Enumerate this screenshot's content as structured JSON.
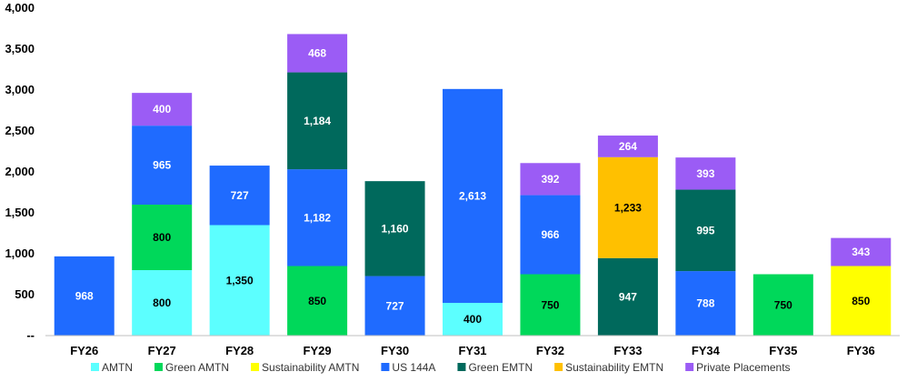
{
  "chart_data": {
    "type": "bar",
    "stacked": true,
    "title": "",
    "xlabel": "",
    "ylabel": "",
    "ylim": [
      0,
      4000
    ],
    "yticks": [
      0,
      500,
      1000,
      1500,
      2000,
      2500,
      3000,
      3500,
      4000
    ],
    "ytick_labels": [
      "--",
      "500",
      "1,000",
      "1,500",
      "2,000",
      "2,500",
      "3,000",
      "3,500",
      "4,000"
    ],
    "grid": false,
    "legend_position": "bottom",
    "categories": [
      "FY26",
      "FY27",
      "FY28",
      "FY29",
      "FY30",
      "FY31",
      "FY32",
      "FY33",
      "FY34",
      "FY35",
      "FY36"
    ],
    "series": [
      {
        "name": "AMTN",
        "color": "#5CFFFF",
        "label_color": "#000000",
        "values": [
          0,
          800,
          1350,
          0,
          0,
          400,
          0,
          0,
          0,
          0,
          0
        ],
        "labels": [
          "",
          "800",
          "1,350",
          "",
          "",
          "400",
          "",
          "",
          "",
          "",
          ""
        ]
      },
      {
        "name": "Green AMTN",
        "color": "#00D85A",
        "label_color": "#000000",
        "values": [
          0,
          800,
          0,
          850,
          0,
          0,
          750,
          0,
          0,
          750,
          0
        ],
        "labels": [
          "",
          "800",
          "",
          "850",
          "",
          "",
          "750",
          "",
          "",
          "750",
          ""
        ]
      },
      {
        "name": "Sustainability AMTN",
        "color": "#FFFF00",
        "label_color": "#000000",
        "values": [
          0,
          0,
          0,
          0,
          0,
          0,
          0,
          0,
          0,
          0,
          850
        ],
        "labels": [
          "",
          "",
          "",
          "",
          "",
          "",
          "",
          "",
          "",
          "",
          "850"
        ]
      },
      {
        "name": "Green EMTN (FY33)",
        "legend": false,
        "color": "#00695C",
        "label_color": "#FFFFFF",
        "values": [
          0,
          0,
          0,
          0,
          0,
          0,
          0,
          947,
          0,
          0,
          0
        ],
        "labels": [
          "",
          "",
          "",
          "",
          "",
          "",
          "",
          "947",
          "",
          "",
          ""
        ]
      },
      {
        "name": "US 144A",
        "color": "#1F6BFF",
        "label_color": "#FFFFFF",
        "values": [
          968,
          965,
          727,
          1182,
          727,
          2613,
          966,
          0,
          788,
          0,
          0
        ],
        "labels": [
          "968",
          "965",
          "727",
          "1,182",
          "727",
          "2,613",
          "966",
          "",
          "788",
          "",
          ""
        ]
      },
      {
        "name": "Green EMTN",
        "color": "#00695C",
        "label_color": "#FFFFFF",
        "values": [
          0,
          0,
          0,
          1184,
          1160,
          0,
          0,
          0,
          995,
          0,
          0
        ],
        "labels": [
          "",
          "",
          "",
          "1,184",
          "1,160",
          "",
          "",
          "",
          "995",
          "",
          ""
        ]
      },
      {
        "name": "Sustainability EMTN",
        "color": "#FFC000",
        "label_color": "#000000",
        "values": [
          0,
          0,
          0,
          0,
          0,
          0,
          0,
          1233,
          0,
          0,
          0
        ],
        "labels": [
          "",
          "",
          "",
          "",
          "",
          "",
          "",
          "1,233",
          "",
          "",
          ""
        ]
      },
      {
        "name": "Private Placements",
        "color": "#9B5CF5",
        "label_color": "#FFFFFF",
        "values": [
          0,
          400,
          0,
          468,
          0,
          0,
          392,
          264,
          393,
          0,
          343
        ],
        "labels": [
          "",
          "400",
          "",
          "468",
          "",
          "",
          "392",
          "264",
          "393",
          "",
          "343"
        ]
      }
    ],
    "legend": [
      {
        "name": "AMTN",
        "color": "#5CFFFF"
      },
      {
        "name": "Green AMTN",
        "color": "#00D85A"
      },
      {
        "name": "Sustainability AMTN",
        "color": "#FFFF00"
      },
      {
        "name": "US 144A",
        "color": "#1F6BFF"
      },
      {
        "name": "Green EMTN",
        "color": "#00695C"
      },
      {
        "name": "Sustainability EMTN",
        "color": "#FFC000"
      },
      {
        "name": "Private Placements",
        "color": "#9B5CF5"
      }
    ]
  }
}
